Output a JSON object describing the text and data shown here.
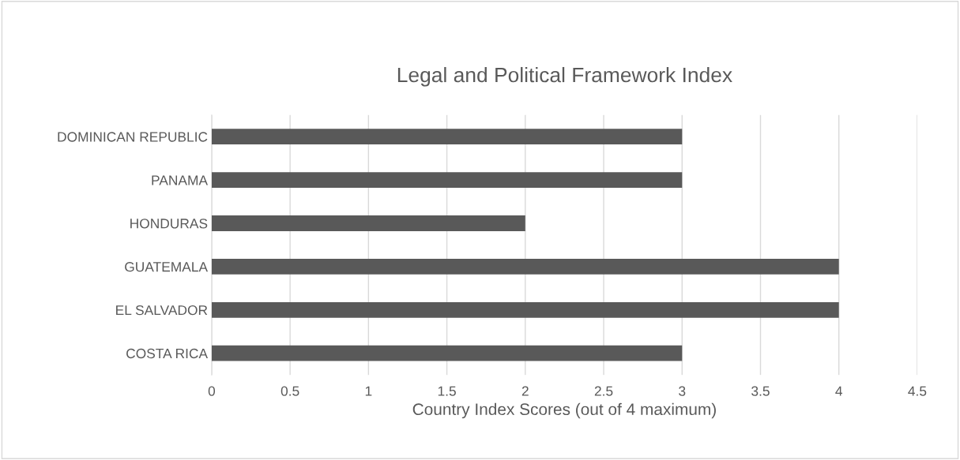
{
  "chart_data": {
    "type": "bar",
    "orientation": "horizontal",
    "title": "Legal and Political Framework Index",
    "xlabel": "Country Index Scores (out of 4 maximum)",
    "categories": [
      "DOMINICAN REPUBLIC",
      "PANAMA",
      "HONDURAS",
      "GUATEMALA",
      "EL SALVADOR",
      "COSTA RICA"
    ],
    "values": [
      3,
      3,
      2,
      4,
      4,
      3
    ],
    "color": "#595959",
    "xlim": [
      0,
      4.5
    ],
    "xticks": [
      0,
      0.5,
      1,
      1.5,
      2,
      2.5,
      3,
      3.5,
      4,
      4.5
    ],
    "grid": "x",
    "legend": false
  }
}
